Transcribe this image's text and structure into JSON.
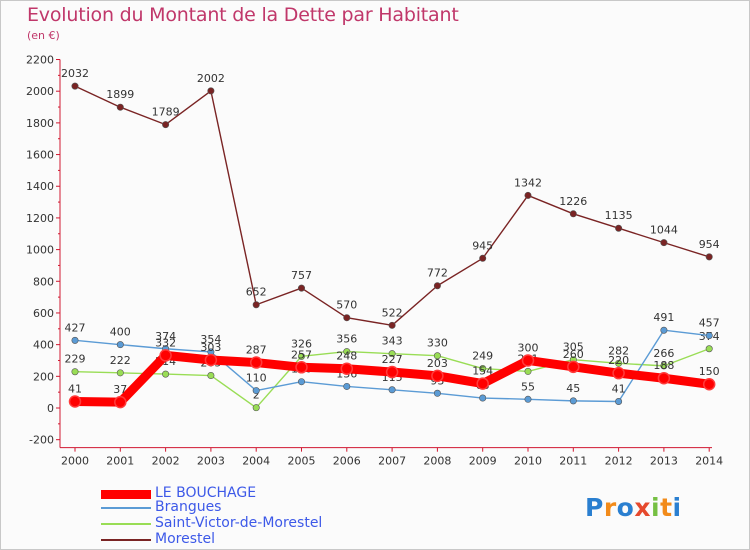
{
  "header": {
    "title": "Evolution du Montant de la Dette par Habitant",
    "subtitle": "(en €)"
  },
  "legend": [
    {
      "label": "LE BOUCHAGE",
      "color": "#ff0000"
    },
    {
      "label": "Brangues",
      "color": "#5b9bd5"
    },
    {
      "label": "Saint-Victor-de-Morestel",
      "color": "#99dd55"
    },
    {
      "label": "Morestel",
      "color": "#7a2424"
    }
  ],
  "logo": {
    "letters": [
      "P",
      "r",
      "o",
      "x",
      "i",
      "t",
      "i"
    ],
    "colors": [
      "#2a7fd0",
      "#f28b1a",
      "#2a7fd0",
      "#e6492d",
      "#76c043",
      "#f28b1a",
      "#2a7fd0"
    ]
  },
  "chart_data": {
    "type": "line",
    "title": "Evolution du Montant de la Dette par Habitant",
    "subtitle": "(en €)",
    "x": [
      "2000",
      "2001",
      "2002",
      "2003",
      "2004",
      "2005",
      "2006",
      "2007",
      "2008",
      "2009",
      "2010",
      "2011",
      "2012",
      "2013",
      "2014"
    ],
    "ylim": [
      -200,
      2200
    ],
    "yticks": [
      -200,
      0,
      200,
      400,
      600,
      800,
      1000,
      1200,
      1400,
      1600,
      1800,
      2000,
      2200
    ],
    "grid": false,
    "legend_position": "bottom-left",
    "series": [
      {
        "name": "Morestel",
        "color": "#7a2424",
        "values": [
          2032,
          1899,
          1789,
          2002,
          652,
          757,
          570,
          522,
          772,
          945,
          1342,
          1226,
          1135,
          1044,
          954
        ]
      },
      {
        "name": "Saint-Victor-de-Morestel",
        "color": "#99dd55",
        "values": [
          229,
          222,
          214,
          205,
          2,
          326,
          356,
          343,
          330,
          249,
          231,
          305,
          282,
          266,
          374
        ]
      },
      {
        "name": "Brangues",
        "color": "#5b9bd5",
        "values": [
          427,
          400,
          374,
          354,
          110,
          166,
          136,
          115,
          93,
          63,
          55,
          45,
          41,
          491,
          457
        ]
      },
      {
        "name": "LE BOUCHAGE",
        "color": "#ff0000",
        "values": [
          41,
          37,
          332,
          303,
          287,
          257,
          248,
          227,
          203,
          154,
          300,
          260,
          220,
          188,
          150
        ]
      }
    ]
  }
}
